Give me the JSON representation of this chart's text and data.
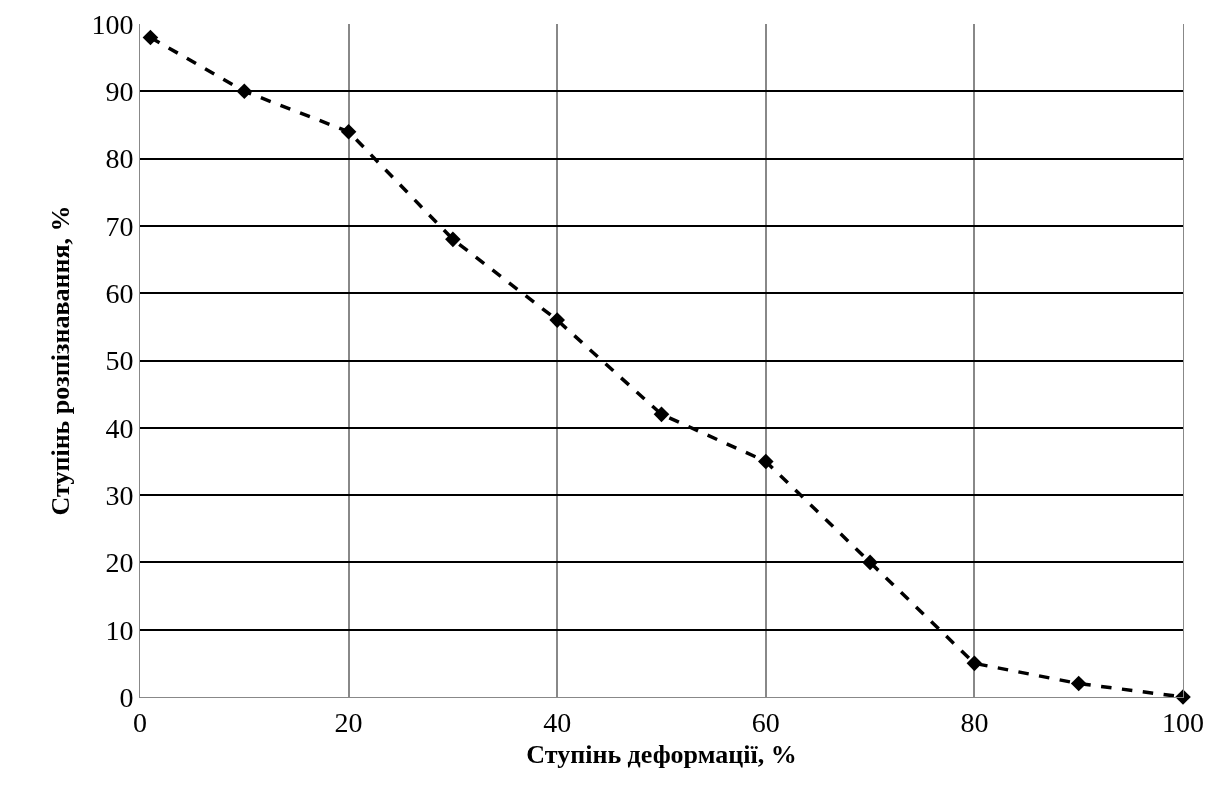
{
  "chart_data": {
    "type": "line",
    "xlabel": "Ступінь деформації, %",
    "ylabel": "Ступінь розпізнавання, %",
    "x": [
      1,
      10,
      20,
      30,
      40,
      50,
      60,
      70,
      80,
      90,
      100
    ],
    "series": [
      {
        "color": "#000000",
        "values": [
          98,
          90,
          84,
          68,
          56,
          42,
          35,
          20,
          5,
          2,
          0
        ]
      }
    ],
    "xlim": [
      0,
      100
    ],
    "xticks": [
      0,
      20,
      40,
      60,
      80,
      100
    ],
    "ylim": [
      0,
      100
    ],
    "yticks": [
      0,
      10,
      20,
      30,
      40,
      50,
      60,
      70,
      80,
      90,
      100
    ],
    "grid": true,
    "marker": "diamond",
    "line_style": "dashed"
  }
}
